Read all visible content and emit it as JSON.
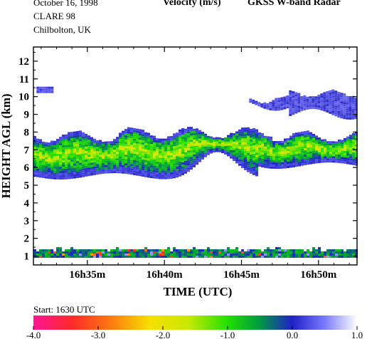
{
  "header": {
    "date": "October  16, 1998",
    "campaign": "CLARE 98",
    "location": "Chilbolton, UK",
    "quantity": "Velocity (m/s)",
    "instrument": "GKSS  W-band Radar"
  },
  "footer": {
    "start_label": "Start: 1630 UTC"
  },
  "chart_data": {
    "type": "heatmap",
    "title": "Velocity (m/s)",
    "xlabel": "TIME (UTC)",
    "ylabel": "HEIGHT AGL (km)",
    "x_ticks": [
      "16h35m",
      "16h40m",
      "16h45m",
      "16h50m"
    ],
    "x_tick_minutes": [
      35,
      40,
      45,
      50
    ],
    "xlim_minutes": [
      31.5,
      52.5
    ],
    "y_ticks": [
      1,
      2,
      3,
      4,
      5,
      6,
      7,
      8,
      9,
      10,
      11,
      12
    ],
    "ylim": [
      0.5,
      12.8
    ],
    "colorbar": {
      "ticks": [
        "-4.0",
        "-3.0",
        "-2.0",
        "-1.0",
        "0.0",
        "1.0"
      ],
      "range": [
        -4.0,
        1.0
      ],
      "stops": [
        {
          "value": -4.0,
          "color": "#ff1493"
        },
        {
          "value": -3.4,
          "color": "#ff2a2a"
        },
        {
          "value": -2.8,
          "color": "#ff7a10"
        },
        {
          "value": -2.2,
          "color": "#f6e000"
        },
        {
          "value": -1.6,
          "color": "#c8e800"
        },
        {
          "value": -1.0,
          "color": "#22e000"
        },
        {
          "value": -0.5,
          "color": "#009a40"
        },
        {
          "value": 0.0,
          "color": "#2020c8"
        },
        {
          "value": 0.5,
          "color": "#7a7aff"
        },
        {
          "value": 1.0,
          "color": "#ffffff"
        }
      ]
    },
    "features": [
      {
        "name": "upper mid-level cloud layer",
        "start_min": 31.5,
        "end_min": 52.5,
        "base_km": 5.4,
        "top_km": 8.0,
        "velocity_ms": -1.0
      },
      {
        "name": "high cirrus",
        "start_min": 45.5,
        "end_min": 52.5,
        "base_km": 9.0,
        "top_km": 10.2,
        "velocity_ms": 0.0
      },
      {
        "name": "high cloud fragment",
        "start_min": 31.7,
        "end_min": 32.7,
        "base_km": 10.2,
        "top_km": 10.5,
        "velocity_ms": 0.0
      },
      {
        "name": "low-level return",
        "start_min": 31.5,
        "end_min": 52.5,
        "base_km": 0.9,
        "top_km": 1.4,
        "velocity_ms": -0.5
      }
    ]
  }
}
